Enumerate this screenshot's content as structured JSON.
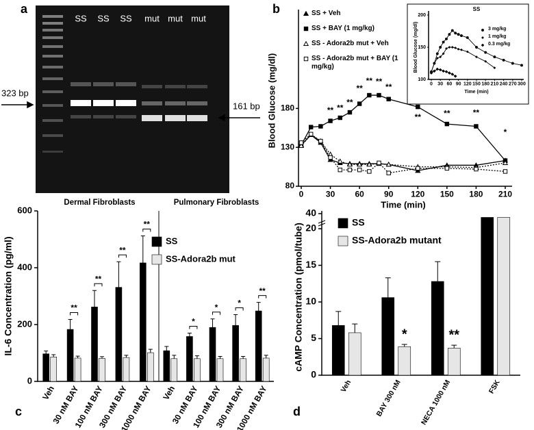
{
  "gel": {
    "panel": "a",
    "lanes": [
      "SS",
      "SS",
      "SS",
      "mut",
      "mut",
      "mut"
    ],
    "markers": [
      "323 bp",
      "161 bp"
    ]
  },
  "chart_data": [
    {
      "panel": "b",
      "type": "line",
      "xlabel": "Time (min)",
      "ylabel": "Blood Glucose (mg/dl)",
      "x": [
        0,
        10,
        20,
        30,
        40,
        50,
        60,
        70,
        80,
        90,
        120,
        150,
        180,
        210
      ],
      "xlim": [
        0,
        210
      ],
      "xticks": [
        0,
        30,
        60,
        90,
        120,
        150,
        180,
        210
      ],
      "ylim": [
        80,
        300
      ],
      "yticks": [
        80,
        130,
        180
      ],
      "series": [
        {
          "name": "SS + Veh",
          "color": "#000000",
          "marker": "triangle",
          "filled": true,
          "dash": "solid",
          "values": [
            133,
            146,
            136,
            114,
            110,
            109,
            109,
            109,
            109,
            108,
            100,
            107,
            107,
            113
          ]
        },
        {
          "name": "SS + BAY (1 mg/kg)",
          "color": "#000000",
          "marker": "square",
          "filled": true,
          "dash": "solid",
          "values": [
            133,
            156,
            157,
            164,
            168,
            175,
            186,
            197,
            197,
            192,
            182,
            160,
            157,
            113
          ]
        },
        {
          "name": "SS - Adora2b mut + Veh",
          "color": "#000000",
          "marker": "triangle",
          "filled": false,
          "dash": "dotted",
          "values": [
            132,
            146,
            138,
            121,
            112,
            108,
            108,
            108,
            109,
            108,
            105,
            105,
            104,
            110
          ]
        },
        {
          "name": "SS - Adora2b mut + BAY (1 mg/kg)",
          "color": "#000000",
          "marker": "square",
          "filled": false,
          "dash": "dotted",
          "values": [
            136,
            147,
            138,
            117,
            101,
            101,
            101,
            99,
            110,
            97,
            103,
            103,
            102,
            99
          ]
        }
      ],
      "annotations": [
        {
          "x": 30,
          "y": 177,
          "text": "**"
        },
        {
          "x": 40,
          "y": 180,
          "text": "**"
        },
        {
          "x": 50,
          "y": 187,
          "text": "**"
        },
        {
          "x": 60,
          "y": 205,
          "text": "**"
        },
        {
          "x": 70,
          "y": 215,
          "text": "**"
        },
        {
          "x": 80,
          "y": 214,
          "text": "**"
        },
        {
          "x": 90,
          "y": 207,
          "text": "**"
        },
        {
          "x": 120,
          "y": 168,
          "text": "**"
        },
        {
          "x": 150,
          "y": 173,
          "text": "**"
        },
        {
          "x": 180,
          "y": 174,
          "text": "**"
        },
        {
          "x": 210,
          "y": 149,
          "text": "*"
        }
      ]
    },
    {
      "type": "line",
      "title": "SS",
      "xlabel": "Time (min)",
      "ylabel": "Blood Glucose (mg/dl)",
      "x": [
        0,
        10,
        20,
        30,
        40,
        50,
        60,
        70,
        80,
        90,
        100,
        120,
        150,
        180,
        210,
        240,
        270,
        300
      ],
      "xlim": [
        0,
        300
      ],
      "xticks": [
        0,
        30,
        60,
        90,
        120,
        150,
        180,
        210,
        240,
        270,
        300
      ],
      "ylim": [
        100,
        200
      ],
      "yticks": [
        100,
        150,
        200
      ],
      "series": [
        {
          "name": "3 mg/kg",
          "color": "#000000",
          "marker": "circle",
          "filled": true,
          "dash": "solid",
          "values": [
            112,
            125,
            140,
            150,
            158,
            163,
            170,
            176,
            172,
            170,
            168,
            165,
            150,
            142,
            135,
            130,
            125,
            122
          ]
        },
        {
          "name": "1 mg/kg",
          "color": "#000000",
          "marker": "plus",
          "filled": true,
          "dash": "solid",
          "values": [
            112,
            125,
            133,
            135,
            140,
            148,
            150,
            150,
            149,
            147,
            146,
            143,
            135,
            128,
            118,
            null,
            null,
            null
          ]
        },
        {
          "name": "0.3 mg/kg",
          "color": "#000000",
          "marker": "diamond",
          "filled": true,
          "dash": "solid",
          "values": [
            110,
            113,
            116,
            115,
            113,
            112,
            110,
            108,
            105,
            null,
            null,
            null,
            null,
            null,
            null,
            null,
            null,
            null
          ]
        }
      ]
    },
    {
      "panel": "c",
      "type": "grouped_bar",
      "ylabel": "IL-6 Concentration (pg/ml)",
      "groups": [
        "Dermal Fibroblasts",
        "Pulmonary Fibroblasts"
      ],
      "categories": [
        "Veh",
        "30 nM BAY",
        "100 nM BAY",
        "300 nM BAY",
        "1000 nM BAY"
      ],
      "ylim": [
        0,
        600
      ],
      "yticks": [
        0,
        200,
        400,
        600
      ],
      "series": [
        {
          "name": "SS",
          "color": "#000000",
          "values": [
            [
              97,
              183,
              262,
              331,
              417
            ],
            [
              108,
              158,
              190,
              197,
              248
            ]
          ],
          "errors": [
            [
              10,
              35,
              58,
              90,
              95
            ],
            [
              15,
              12,
              30,
              38,
              30
            ]
          ]
        },
        {
          "name": "SS-Adora2b mut",
          "color": "#e6e6e6",
          "values": [
            [
              86,
              82,
              81,
              84,
              101
            ],
            [
              80,
              80,
              80,
              80,
              82
            ]
          ],
          "errors": [
            [
              8,
              7,
              6,
              8,
              12
            ],
            [
              12,
              10,
              8,
              8,
              10
            ]
          ]
        }
      ],
      "significance": [
        [
          null,
          "**",
          "**",
          "**",
          "**"
        ],
        [
          null,
          "*",
          "*",
          "*",
          "**"
        ]
      ]
    },
    {
      "panel": "d",
      "type": "bar",
      "ylabel": "cAMP Concentration (pmol/tube)",
      "categories": [
        "Veh",
        "BAY 300 nM",
        "NECA 1000 nM",
        "FSK"
      ],
      "ylim": [
        0,
        40
      ],
      "yticks": [
        0,
        5,
        10,
        15,
        20,
        40
      ],
      "axis_break": [
        20,
        40
      ],
      "series": [
        {
          "name": "SS",
          "color": "#000000",
          "values": [
            6.8,
            10.6,
            12.8,
            35
          ],
          "errors": [
            1.9,
            2.7,
            2.7,
            null
          ]
        },
        {
          "name": "SS-Adora2b mutant",
          "color": "#e6e6e6",
          "values": [
            5.8,
            3.9,
            3.7,
            35
          ],
          "errors": [
            1.2,
            0.3,
            0.4,
            null
          ]
        }
      ],
      "significance": [
        null,
        "*",
        "**",
        null
      ]
    }
  ]
}
